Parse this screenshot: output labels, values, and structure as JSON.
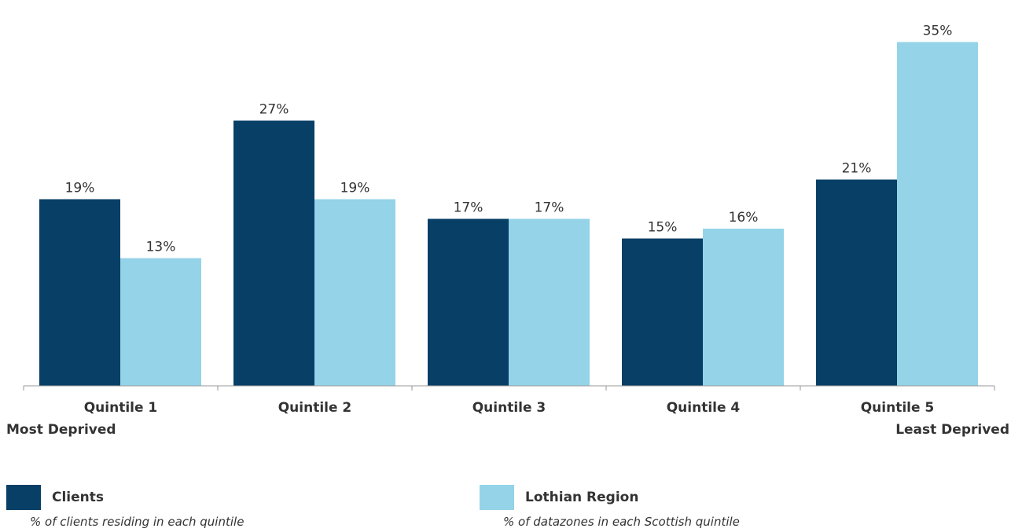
{
  "chart_data": {
    "type": "bar",
    "categories": [
      "Quintile 1",
      "Quintile 2",
      "Quintile 3",
      "Quintile 4",
      "Quintile 5"
    ],
    "series": [
      {
        "name": "Clients",
        "description": "% of clients residing in each quintile",
        "color": "#073f66",
        "values": [
          19,
          27,
          17,
          15,
          21
        ],
        "labels": [
          "19%",
          "27%",
          "17%",
          "15%",
          "21%"
        ]
      },
      {
        "name": "Lothian Region",
        "description": "% of datazones in each Scottish quintile",
        "color": "#94d3e8",
        "values": [
          13,
          19,
          17,
          16,
          35
        ],
        "labels": [
          "13%",
          "19%",
          "17%",
          "16%",
          "35%"
        ]
      }
    ],
    "ylim": [
      0,
      36
    ],
    "grid": false,
    "legend": "bottom",
    "axis_notes": {
      "left": "Most Deprived",
      "right": "Least Deprived"
    }
  }
}
